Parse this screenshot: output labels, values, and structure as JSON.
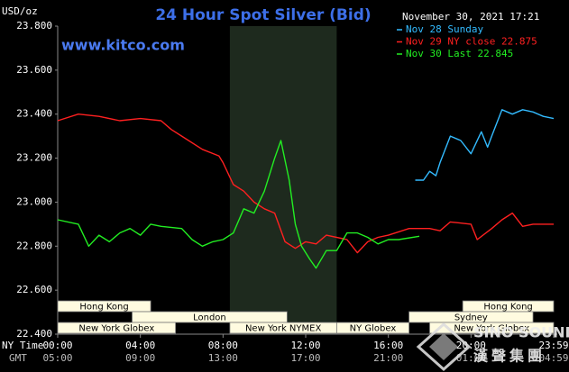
{
  "chart_data": {
    "type": "line",
    "title": "24 Hour Spot Silver (Bid)",
    "y_label": "USD/oz",
    "timestamp": "November 30, 2021 17:21",
    "site": "www.kitco.com",
    "watermark": [
      "SINO SOUND",
      "漢聲集團"
    ],
    "ylim": [
      22.4,
      23.8
    ],
    "yticks": [
      {
        "value": 22.4,
        "label": "22.400"
      },
      {
        "value": 22.6,
        "label": "22.600"
      },
      {
        "value": 22.8,
        "label": "22.800"
      },
      {
        "value": 23.0,
        "label": "23.000"
      },
      {
        "value": 23.2,
        "label": "23.200"
      },
      {
        "value": 23.4,
        "label": "23.400"
      },
      {
        "value": 23.6,
        "label": "23.600"
      },
      {
        "value": 23.8,
        "label": "23.800"
      }
    ],
    "xlim": [
      0,
      24
    ],
    "xticks": [
      {
        "value": 0,
        "label": "00:00"
      },
      {
        "value": 4,
        "label": "04:00"
      },
      {
        "value": 8,
        "label": "08:00"
      },
      {
        "value": 12,
        "label": "12:00"
      },
      {
        "value": 16,
        "label": "16:00"
      },
      {
        "value": 20,
        "label": "20:00"
      },
      {
        "value": 24,
        "label": "23:59"
      }
    ],
    "x_row_label": "NY Time",
    "gmt_row_label": "GMT",
    "gmt_tick_labels": [
      "05:00",
      "09:00",
      "13:00",
      "17:00",
      "21:00",
      "01:00",
      "04:59"
    ],
    "grid": false,
    "sessions": [
      {
        "label": "Hong Kong",
        "start": 0,
        "end": 4.5
      },
      {
        "label": "London",
        "start": 3.6,
        "end": 11.1
      },
      {
        "label": "New York Globex",
        "start": 0,
        "end": 5.7
      },
      {
        "label": "New York NYMEX",
        "start": 8.33,
        "end": 13.5
      },
      {
        "label": "NY Globex",
        "start": 13.5,
        "end": 17
      },
      {
        "label": "Hong Kong",
        "start": 19.6,
        "end": 24
      },
      {
        "label": "Sydney",
        "start": 17,
        "end": 23
      },
      {
        "label": "New York Globex",
        "start": 18,
        "end": 24
      }
    ],
    "series": [
      {
        "name": "Nov 28 Sunday",
        "color": "#33bbff",
        "x": [
          17.3,
          17.7,
          18,
          18.3,
          18.5,
          19,
          19.5,
          20,
          20.5,
          20.8,
          21,
          21.5,
          22,
          22.5,
          23,
          23.5,
          24
        ],
        "values": [
          23.1,
          23.1,
          23.14,
          23.12,
          23.18,
          23.3,
          23.28,
          23.22,
          23.32,
          23.25,
          23.3,
          23.42,
          23.4,
          23.42,
          23.41,
          23.39,
          23.38
        ]
      },
      {
        "name": "Nov 29 NY close 22.875",
        "color": "#ff2020",
        "x": [
          0,
          1,
          2,
          3,
          4,
          5,
          5.5,
          6,
          7,
          7.8,
          8,
          8.5,
          9,
          9.5,
          10,
          10.5,
          11,
          11.5,
          12,
          12.5,
          13,
          14,
          14.5,
          15,
          15.5,
          16,
          17,
          18,
          18.5,
          19,
          20,
          20.3,
          21,
          21.5,
          22,
          22.5,
          23,
          24
        ],
        "values": [
          23.37,
          23.4,
          23.39,
          23.37,
          23.38,
          23.37,
          23.33,
          23.3,
          23.24,
          23.21,
          23.18,
          23.08,
          23.05,
          23.0,
          22.97,
          22.95,
          22.82,
          22.79,
          22.82,
          22.81,
          22.85,
          22.83,
          22.77,
          22.82,
          22.84,
          22.85,
          22.88,
          22.88,
          22.87,
          22.91,
          22.9,
          22.83,
          22.88,
          22.92,
          22.95,
          22.89,
          22.9,
          22.9
        ]
      },
      {
        "name": "Nov 30 Last 22.845",
        "color": "#22ee22",
        "x": [
          0,
          1,
          1.5,
          2,
          2.5,
          3,
          3.5,
          4,
          4.5,
          5,
          6,
          6.5,
          7,
          7.5,
          8,
          8.5,
          9,
          9.5,
          10,
          10.5,
          10.8,
          11.2,
          11.5,
          11.8,
          12.2,
          12.5,
          13,
          13.5,
          14,
          14.5,
          15,
          15.5,
          16,
          16.5,
          17.5
        ],
        "values": [
          22.92,
          22.9,
          22.8,
          22.85,
          22.82,
          22.86,
          22.88,
          22.85,
          22.9,
          22.89,
          22.88,
          22.83,
          22.8,
          22.82,
          22.83,
          22.86,
          22.97,
          22.95,
          23.05,
          23.2,
          23.28,
          23.1,
          22.9,
          22.8,
          22.74,
          22.7,
          22.78,
          22.78,
          22.86,
          22.86,
          22.84,
          22.81,
          22.83,
          22.83,
          22.845
        ]
      }
    ]
  }
}
